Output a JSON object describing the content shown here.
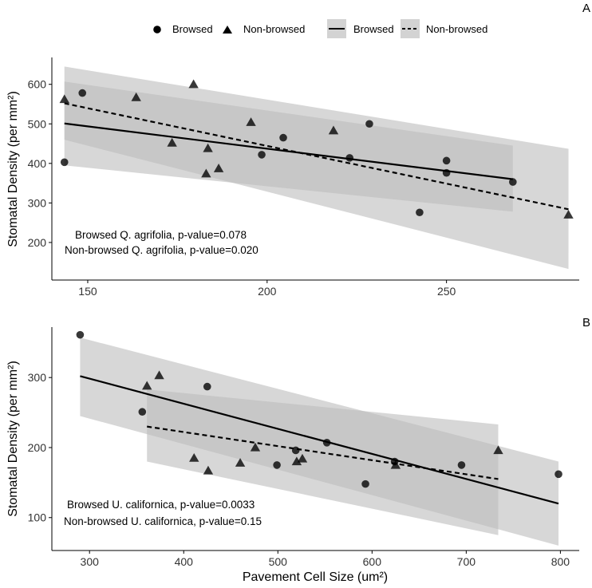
{
  "legend": {
    "points": [
      {
        "label": "Browsed",
        "shape": "circle"
      },
      {
        "label": "Non-browsed",
        "shape": "triangle"
      }
    ],
    "lines": [
      {
        "label": "Browsed",
        "style": "solid"
      },
      {
        "label": "Non-browsed",
        "style": "dashed"
      }
    ]
  },
  "colors": {
    "point": "#000000",
    "ribbon": "#bdbdbd",
    "browsed_line": "#000000",
    "nonbrowsed_line": "#000000"
  },
  "chart_data": [
    {
      "type": "scatter",
      "panel": "A",
      "title": "",
      "xlabel": "",
      "ylabel": "Stomatal Density  (per mm²)",
      "xlim": [
        140,
        287
      ],
      "ylim": [
        105,
        668
      ],
      "xticks": [
        150,
        200,
        250
      ],
      "yticks": [
        200,
        300,
        400,
        500,
        600
      ],
      "annotations": [
        "Browsed Q. agrifolia, p-value=0.078",
        "Non-browsed Q. agrifolia, p-value=0.020"
      ],
      "series": [
        {
          "name": "Browsed",
          "marker": "circle",
          "points": [
            [
              143.5,
              403
            ],
            [
              148.5,
              578
            ],
            [
              198.5,
              422
            ],
            [
              204.5,
              465
            ],
            [
              223,
              414
            ],
            [
              228.5,
              500
            ],
            [
              242.5,
              276
            ],
            [
              250,
              407
            ],
            [
              250,
              376
            ],
            [
              268.5,
              353
            ]
          ],
          "fit": {
            "style": "solid",
            "x": [
              143.5,
              268.5
            ],
            "y": [
              501,
              360
            ],
            "lower": [
              395,
              278
            ],
            "upper": [
              607,
              445
            ]
          }
        },
        {
          "name": "Non-browsed",
          "marker": "triangle",
          "points": [
            [
              143.5,
              562
            ],
            [
              163.5,
              567
            ],
            [
              173.5,
              452
            ],
            [
              179.5,
              600
            ],
            [
              183,
              374
            ],
            [
              183.5,
              438
            ],
            [
              186.5,
              387
            ],
            [
              195.5,
              504
            ],
            [
              218.5,
              483
            ],
            [
              284,
              270
            ]
          ],
          "fit": {
            "style": "dashed",
            "x": [
              143.5,
              284
            ],
            "y": [
              552,
              284
            ],
            "lower": [
              460,
              133
            ],
            "upper": [
              645,
              437
            ]
          }
        }
      ]
    },
    {
      "type": "scatter",
      "panel": "B",
      "title": "",
      "xlabel": "Pavement Cell Size  (um²)",
      "ylabel": "Stomatal Density  (per mm²)",
      "xlim": [
        260,
        820
      ],
      "ylim": [
        53,
        372
      ],
      "xticks": [
        300,
        400,
        500,
        600,
        700,
        800
      ],
      "yticks": [
        100,
        200,
        300
      ],
      "annotations": [
        "Browsed U. californica, p-value=0.0033",
        "Non-browsed U. californica, p-value=0.15"
      ],
      "series": [
        {
          "name": "Browsed",
          "marker": "circle",
          "points": [
            [
              290,
              361
            ],
            [
              356,
              251
            ],
            [
              425,
              287
            ],
            [
              499,
              175
            ],
            [
              519,
              196
            ],
            [
              552,
              207
            ],
            [
              593,
              148
            ],
            [
              624,
              180
            ],
            [
              695,
              175
            ],
            [
              798,
              162
            ]
          ],
          "fit": {
            "style": "solid",
            "x": [
              290,
              798
            ],
            "y": [
              302,
              120
            ],
            "lower": [
              245,
              60
            ],
            "upper": [
              357,
              180
            ]
          }
        },
        {
          "name": "Non-browsed",
          "marker": "triangle",
          "points": [
            [
              361,
              288
            ],
            [
              374,
              303
            ],
            [
              411,
              185
            ],
            [
              426,
              167
            ],
            [
              460,
              178
            ],
            [
              476,
              200
            ],
            [
              520,
              180
            ],
            [
              526,
              184
            ],
            [
              625,
              175
            ],
            [
              734,
              196
            ]
          ],
          "fit": {
            "style": "dashed",
            "x": [
              361,
              734
            ],
            "y": [
              230,
              155
            ],
            "lower": [
              180,
              75
            ],
            "upper": [
              283,
              233
            ]
          }
        }
      ]
    }
  ]
}
